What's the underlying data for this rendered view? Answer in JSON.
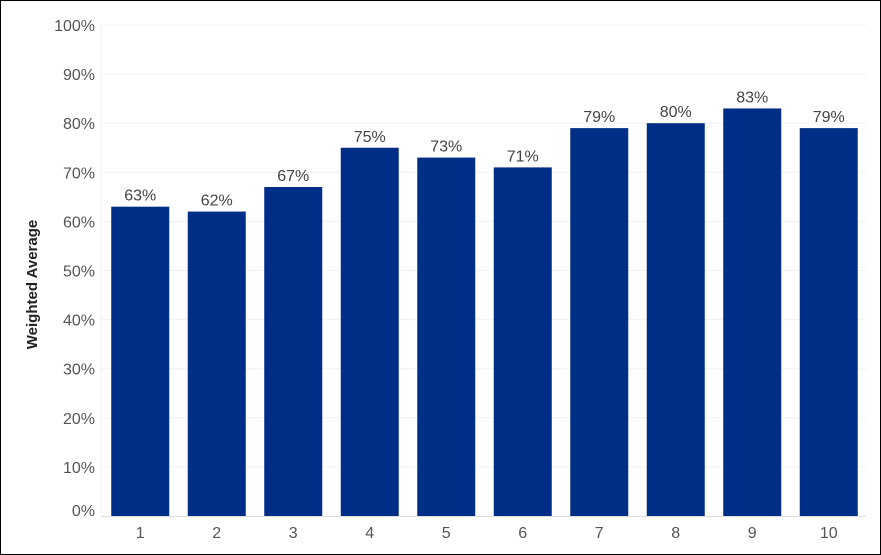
{
  "chart_data": {
    "type": "bar",
    "categories": [
      "1",
      "2",
      "3",
      "4",
      "5",
      "6",
      "7",
      "8",
      "9",
      "10"
    ],
    "values": [
      63,
      62,
      67,
      75,
      73,
      71,
      79,
      80,
      83,
      79
    ],
    "data_labels": [
      "63%",
      "62%",
      "67%",
      "75%",
      "73%",
      "71%",
      "79%",
      "80%",
      "83%",
      "79%"
    ],
    "title": "",
    "xlabel": "",
    "ylabel": "Weighted Average",
    "ylim": [
      0,
      100
    ],
    "yticks": [
      "0%",
      "10%",
      "20%",
      "30%",
      "40%",
      "50%",
      "60%",
      "70%",
      "80%",
      "90%",
      "100%"
    ],
    "grid": true,
    "bar_color": "#002d85",
    "grid_color": "#f0f0f0"
  }
}
